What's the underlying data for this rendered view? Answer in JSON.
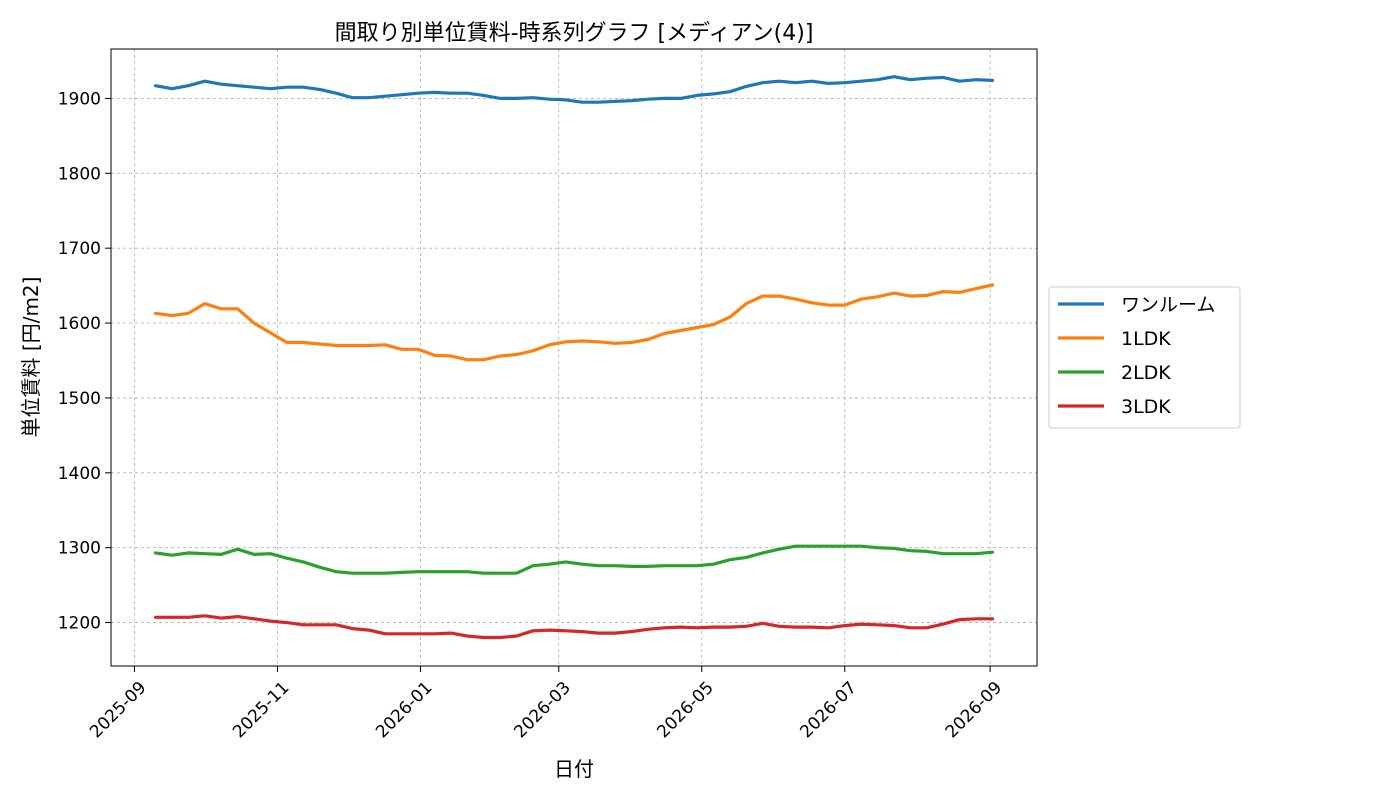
{
  "chart_data": {
    "type": "line",
    "title": "間取り別単位賃料-時系列グラフ [メディアン(4)]",
    "xlabel": "日付",
    "ylabel": "単位賃料 [円/m2]",
    "x_ticks": [
      "2025-09",
      "2025-11",
      "2026-01",
      "2026-03",
      "2026-05",
      "2026-07",
      "2026-09"
    ],
    "y_ticks": [
      1200,
      1300,
      1400,
      1500,
      1600,
      1700,
      1800,
      1900
    ],
    "xlim": [
      "2025-08-22",
      "2026-09-21"
    ],
    "ylim": [
      1142,
      1966
    ],
    "grid": true,
    "legend_position": "outside-right",
    "x": [
      "2025-09-10",
      "2025-09-17",
      "2025-09-24",
      "2025-10-01",
      "2025-10-08",
      "2025-10-15",
      "2025-10-22",
      "2025-10-29",
      "2025-11-05",
      "2025-11-12",
      "2025-11-19",
      "2025-11-26",
      "2025-12-03",
      "2025-12-10",
      "2025-12-17",
      "2025-12-24",
      "2025-12-31",
      "2026-01-07",
      "2026-01-14",
      "2026-01-21",
      "2026-01-28",
      "2026-02-04",
      "2026-02-11",
      "2026-02-18",
      "2026-02-25",
      "2026-03-04",
      "2026-03-11",
      "2026-03-18",
      "2026-03-25",
      "2026-04-01",
      "2026-04-08",
      "2026-04-15",
      "2026-04-22",
      "2026-04-29",
      "2026-05-06",
      "2026-05-13",
      "2026-05-20",
      "2026-05-27",
      "2026-06-03",
      "2026-06-10",
      "2026-06-17",
      "2026-06-24",
      "2026-07-01",
      "2026-07-08",
      "2026-07-15",
      "2026-07-22",
      "2026-07-29",
      "2026-08-05",
      "2026-08-12",
      "2026-08-19",
      "2026-08-26",
      "2026-09-02"
    ],
    "series": [
      {
        "name": "ワンルーム",
        "color": "#1f77b4",
        "values": [
          1917,
          1913,
          1917,
          1923,
          1919,
          1917,
          1915,
          1913,
          1915,
          1915,
          1912,
          1907,
          1901,
          1901,
          1903,
          1905,
          1907,
          1908,
          1907,
          1907,
          1904,
          1900,
          1900,
          1901,
          1899,
          1898,
          1895,
          1895,
          1896,
          1897,
          1899,
          1900,
          1900,
          1904,
          1906,
          1909,
          1916,
          1921,
          1923,
          1921,
          1923,
          1920,
          1921,
          1923,
          1925,
          1929,
          1925,
          1927,
          1928,
          1923,
          1925,
          1924
        ]
      },
      {
        "name": "1LDK",
        "color": "#ff7f0e",
        "values": [
          1613,
          1610,
          1613,
          1626,
          1619,
          1619,
          1600,
          1587,
          1574,
          1574,
          1572,
          1570,
          1570,
          1570,
          1571,
          1565,
          1565,
          1557,
          1556,
          1551,
          1551,
          1556,
          1558,
          1563,
          1571,
          1575,
          1576,
          1575,
          1573,
          1574,
          1578,
          1586,
          1590,
          1594,
          1598,
          1608,
          1626,
          1636,
          1636,
          1632,
          1627,
          1624,
          1624,
          1632,
          1635,
          1640,
          1636,
          1637,
          1642,
          1641,
          1646,
          1651
        ]
      },
      {
        "name": "2LDK",
        "color": "#2ca02c",
        "values": [
          1293,
          1290,
          1293,
          1292,
          1291,
          1298,
          1291,
          1292,
          1286,
          1281,
          1274,
          1268,
          1266,
          1266,
          1266,
          1267,
          1268,
          1268,
          1268,
          1268,
          1266,
          1266,
          1266,
          1276,
          1278,
          1281,
          1278,
          1276,
          1276,
          1275,
          1275,
          1276,
          1276,
          1276,
          1278,
          1284,
          1287,
          1293,
          1298,
          1302,
          1302,
          1302,
          1302,
          1302,
          1300,
          1299,
          1296,
          1295,
          1292,
          1292,
          1292,
          1294
        ]
      },
      {
        "name": "3LDK",
        "color": "#d62728",
        "values": [
          1207,
          1207,
          1207,
          1209,
          1206,
          1208,
          1205,
          1202,
          1200,
          1197,
          1197,
          1197,
          1192,
          1190,
          1185,
          1185,
          1185,
          1185,
          1186,
          1182,
          1180,
          1180,
          1182,
          1189,
          1190,
          1189,
          1188,
          1186,
          1186,
          1188,
          1191,
          1193,
          1194,
          1193,
          1194,
          1194,
          1195,
          1199,
          1195,
          1194,
          1194,
          1193,
          1196,
          1198,
          1197,
          1196,
          1193,
          1193,
          1198,
          1204,
          1205,
          1205
        ]
      }
    ]
  }
}
